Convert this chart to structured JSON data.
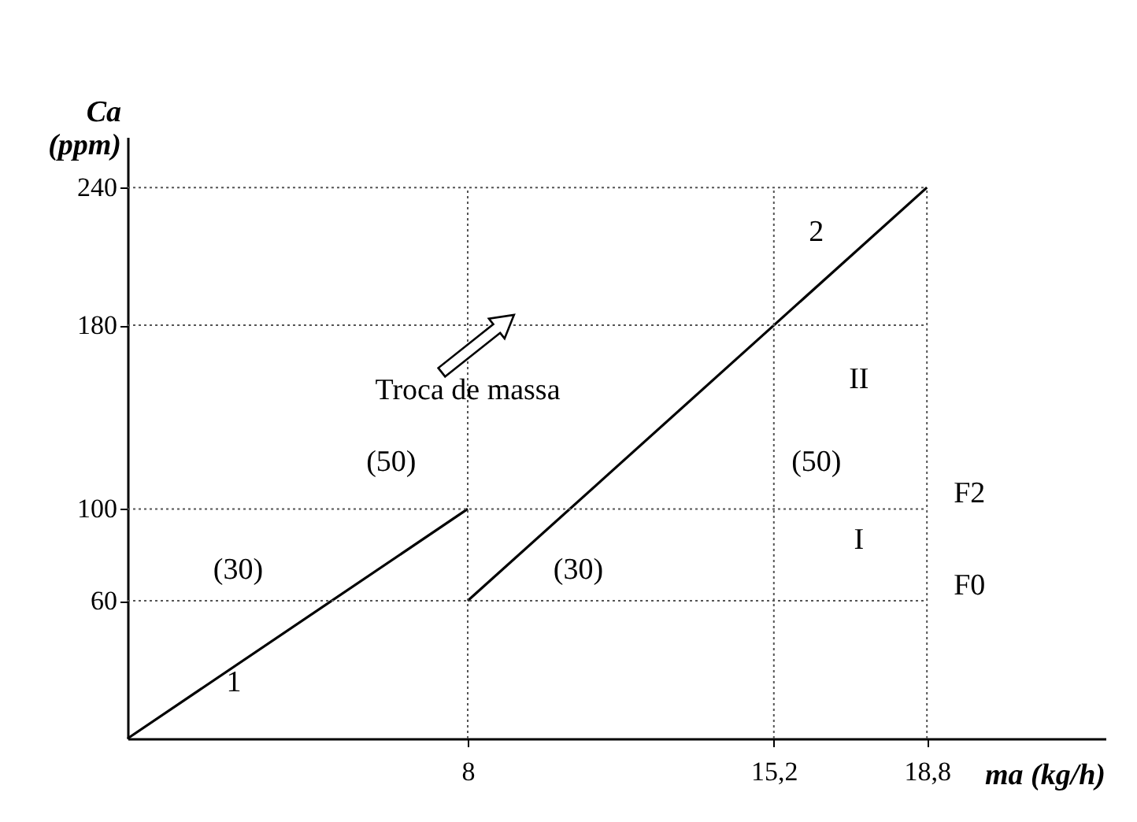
{
  "chart_data": {
    "type": "line",
    "xlabel": "ma (kg/h)",
    "ylabel": "Ca (ppm)",
    "series": [
      {
        "color": "#000000",
        "x": [
          0,
          8
        ],
        "values": [
          0,
          100
        ]
      },
      {
        "color": "#000000",
        "x": [
          8,
          15.2,
          18.8
        ],
        "values": [
          60,
          180,
          240
        ]
      }
    ],
    "xlim": [
      0,
      23
    ],
    "ylim": [
      0,
      262
    ],
    "xticks": [
      8,
      {
        "value": 15.2,
        "label": "15,2"
      },
      {
        "value": 18.8,
        "label": "18,8"
      }
    ],
    "yticks": [
      60,
      100,
      180,
      240
    ],
    "grid": true,
    "legend": false,
    "marker": "none",
    "line_style": "solid",
    "annotations": [
      "(30)",
      "1",
      "(50)",
      "Troca de massa",
      "(30)",
      "(50)",
      "2",
      "II",
      "I",
      "F2",
      "F0"
    ]
  }
}
